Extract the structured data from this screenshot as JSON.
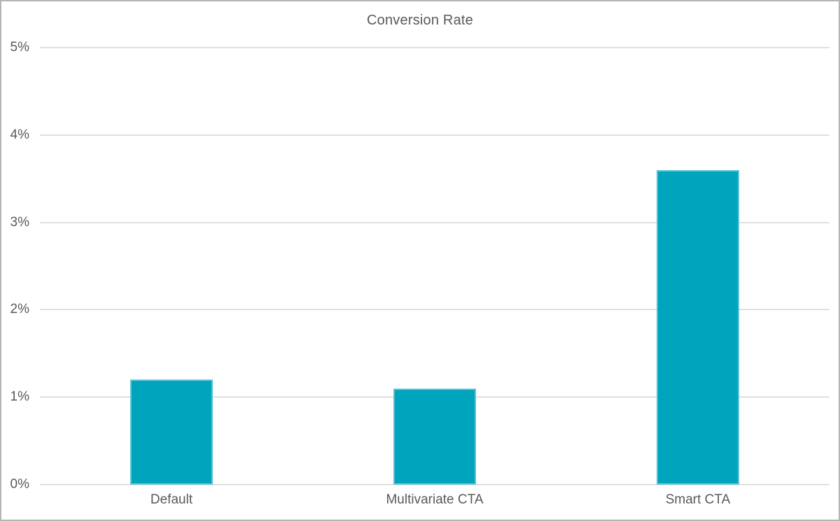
{
  "chart_data": {
    "type": "bar",
    "title": "Conversion Rate",
    "categories": [
      "Default",
      "Multivariate CTA",
      "Smart CTA"
    ],
    "values": [
      1.2,
      1.1,
      3.6
    ],
    "value_unit": "%",
    "xlabel": "",
    "ylabel": "",
    "ylim": [
      0,
      5
    ],
    "yticks": [
      0,
      1,
      2,
      3,
      4,
      5
    ],
    "ytick_labels": [
      "0%",
      "1%",
      "2%",
      "3%",
      "4%",
      "5%"
    ],
    "grid": true,
    "legend_position": "none",
    "colors": {
      "bar": "#00a4bd",
      "bar_border": "rgba(255,255,255,0.35)",
      "gridline": "#e0e0e0",
      "text": "#595959",
      "frame_border": "#b5b5b5",
      "background": "#ffffff"
    }
  }
}
